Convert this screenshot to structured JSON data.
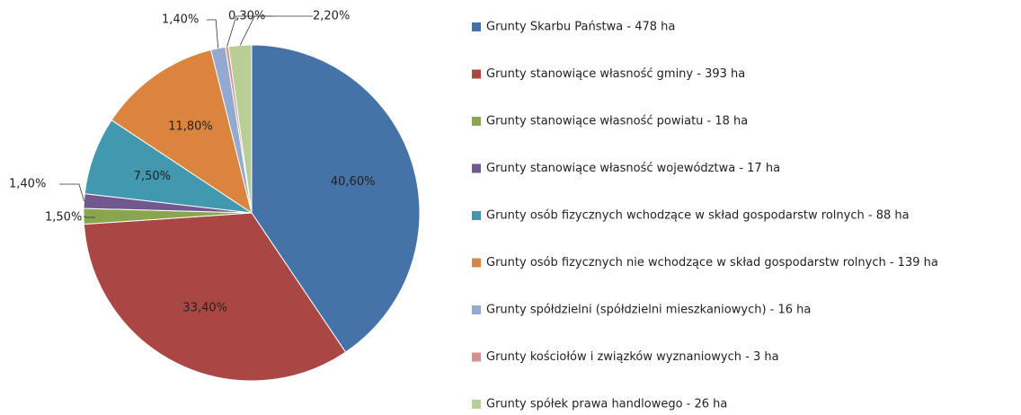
{
  "chart_data": {
    "type": "pie",
    "categories": [
      "Grunty Skarbu Państwa - 478 ha",
      "Grunty stanowiące własność gminy - 393 ha",
      "Grunty stanowiące własność powiatu - 18 ha",
      "Grunty stanowiące własność województwa - 17 ha",
      "Grunty osób fizycznych wchodzące w skład gospodarstw rolnych - 88 ha",
      "Grunty osób fizycznych nie wchodzące w skład gospodarstw rolnych - 139 ha",
      "Grunty spółdzielni (spółdzielni mieszkaniowych) - 16 ha",
      "Grunty kościołów i związków wyznaniowych - 3 ha",
      "Grunty spółek prawa handlowego - 26 ha"
    ],
    "values": [
      40.6,
      33.4,
      1.5,
      1.4,
      7.5,
      11.8,
      1.4,
      0.3,
      2.2
    ],
    "value_labels": [
      "40,60%",
      "33,40%",
      "1,50%",
      "1,40%",
      "7,50%",
      "11,80%",
      "1,40%",
      "0,30%",
      "2,20%"
    ],
    "colors": [
      "#4572a7",
      "#aa4643",
      "#89a54e",
      "#71588f",
      "#4198af",
      "#db843d",
      "#93a9cf",
      "#d19392",
      "#b9cd96"
    ],
    "legend": "right"
  }
}
